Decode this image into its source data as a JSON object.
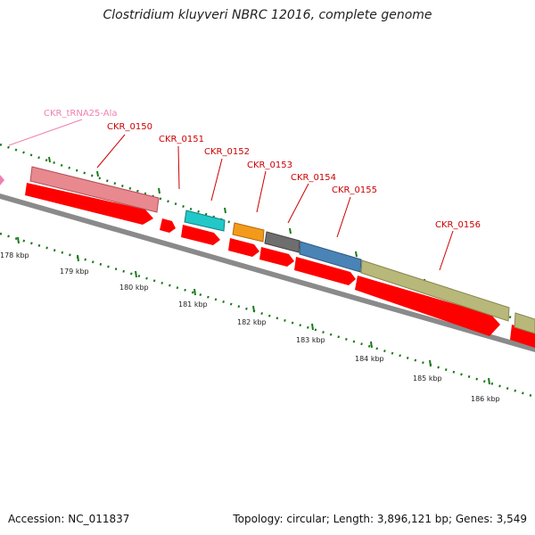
{
  "title": "Clostridium kluyveri NBRC 12016, complete genome",
  "footer": {
    "accession": "Accession: NC_011837",
    "summary": "Topology: circular; Length: 3,896,121 bp; Genes: 3,549"
  },
  "colors": {
    "cds": "#ff0000",
    "backbone": "#808080",
    "tick": "#1a7a1a",
    "gene_label": "#cc0000",
    "trna_label": "#f080b0"
  },
  "genes": [
    {
      "name": "CKR_0150",
      "color": "#e8898f"
    },
    {
      "name": "CKR_0151",
      "color": "#22c8c8"
    },
    {
      "name": "CKR_0152",
      "color": "#f39a1a"
    },
    {
      "name": "CKR_0153",
      "color": "#6e6e6e"
    },
    {
      "name": "CKR_0154",
      "color": "#4a83b5"
    },
    {
      "name": "CKR_0155",
      "color": "#b8b87a"
    },
    {
      "name": "CKR_0156",
      "color": "#b8b87a"
    }
  ],
  "trna": {
    "name": "CKR_tRNA25-Ala",
    "color": "#f080b0"
  },
  "kbp_labels": [
    "178 kbp",
    "179 kbp",
    "180 kbp",
    "181 kbp",
    "182 kbp",
    "183 kbp",
    "184 kbp",
    "185 kbp",
    "186 kbp"
  ]
}
